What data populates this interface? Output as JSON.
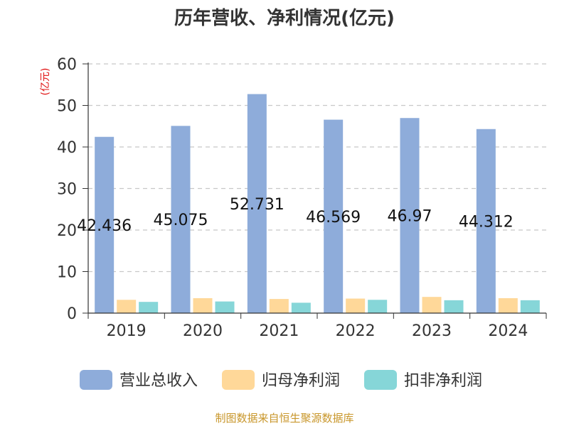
{
  "chart_data": {
    "type": "bar",
    "title": "历年营收、净利情况(亿元)",
    "ylabel": "(亿元)",
    "xlabel": "",
    "categories": [
      "2019",
      "2020",
      "2021",
      "2022",
      "2023",
      "2024"
    ],
    "ylim": [
      0,
      60
    ],
    "yticks": [
      0,
      10,
      20,
      30,
      40,
      50,
      60
    ],
    "grid": true,
    "legend_position": "bottom",
    "series": [
      {
        "name": "营业总收入",
        "values": [
          42.436,
          45.075,
          52.731,
          46.569,
          46.97,
          44.312
        ],
        "color": "#8EACDA",
        "show_labels": true
      },
      {
        "name": "归母净利润",
        "values": [
          3.2,
          3.6,
          3.4,
          3.5,
          3.9,
          3.6
        ],
        "color": "#FFD899",
        "show_labels": false
      },
      {
        "name": "扣非净利润",
        "values": [
          2.7,
          2.8,
          2.5,
          3.2,
          3.1,
          3.1
        ],
        "color": "#86D6D8",
        "show_labels": false
      }
    ],
    "source": "制图数据来自恒生聚源数据库"
  }
}
